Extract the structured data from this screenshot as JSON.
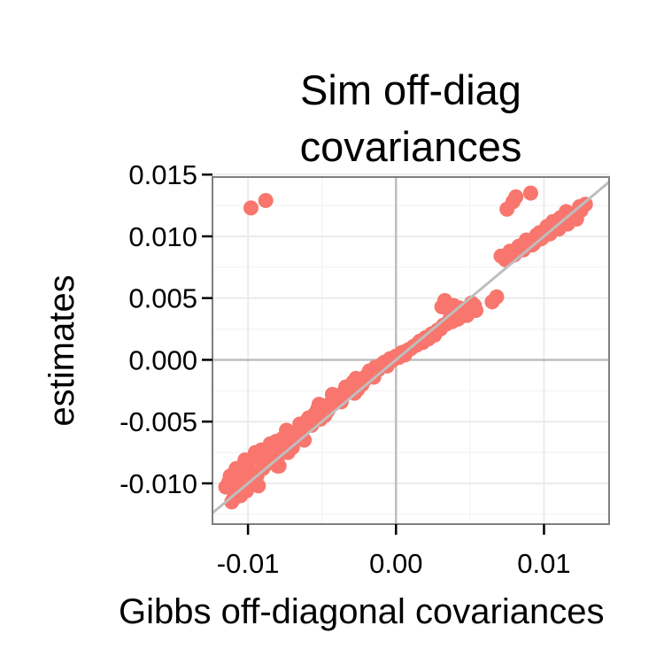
{
  "chart_data": {
    "type": "scatter",
    "title_lines": [
      "Sim off-diag",
      "covariances"
    ],
    "xlabel": "Gibbs off-diagonal covariances",
    "ylabel": "estimates",
    "xlim": [
      -0.0124,
      0.0144
    ],
    "ylim": [
      -0.0133,
      0.0148
    ],
    "x_ticks": [
      -0.01,
      0.0,
      0.01
    ],
    "x_tick_labels": [
      "-0.01",
      "0.00",
      "0.01"
    ],
    "y_ticks": [
      -0.01,
      -0.005,
      0.0,
      0.005,
      0.01,
      0.015
    ],
    "y_tick_labels": [
      "-0.010",
      "-0.005",
      "0.000",
      "0.005",
      "0.010",
      "0.015"
    ],
    "grid": true,
    "reference_lines": {
      "hline_y": 0,
      "vline_x": 0,
      "identity": true
    },
    "colors": {
      "points": "#F8766D",
      "reference": "#BEBEBE",
      "frame": "#7F7F7F",
      "grid_major": "#EBEBEB",
      "grid_minor": "#F5F5F5"
    },
    "points_x": [
      -0.0115,
      -0.0112,
      -0.011,
      -0.0108,
      -0.0113,
      -0.0109,
      -0.0106,
      -0.0104,
      -0.0111,
      -0.0107,
      -0.0103,
      -0.0101,
      -0.0109,
      -0.0105,
      -0.0099,
      -0.0097,
      -0.0108,
      -0.0102,
      -0.0098,
      -0.0095,
      -0.0093,
      -0.01,
      -0.0096,
      -0.0092,
      -0.009,
      -0.0088,
      -0.0094,
      -0.0091,
      -0.0087,
      -0.0085,
      -0.0089,
      -0.0084,
      -0.0082,
      -0.008,
      -0.0086,
      -0.0081,
      -0.0079,
      -0.0077,
      -0.0083,
      -0.0078,
      -0.0075,
      -0.0073,
      -0.0076,
      -0.0072,
      -0.007,
      -0.0068,
      -0.0074,
      -0.0071,
      -0.0066,
      -0.0064,
      -0.0069,
      -0.0065,
      -0.0062,
      -0.006,
      -0.0063,
      -0.0059,
      -0.0057,
      -0.0055,
      -0.0061,
      -0.0056,
      -0.0053,
      -0.0051,
      -0.0054,
      -0.005,
      -0.0048,
      -0.0046,
      -0.0052,
      -0.0047,
      -0.0044,
      -0.0042,
      -0.0045,
      -0.0041,
      -0.0039,
      -0.0037,
      -0.0043,
      -0.0038,
      -0.0035,
      -0.0033,
      -0.0036,
      -0.0032,
      -0.003,
      -0.0028,
      -0.0034,
      -0.0029,
      -0.0026,
      -0.0024,
      -0.0027,
      -0.0023,
      -0.0021,
      -0.0019,
      -0.0025,
      -0.002,
      -0.0017,
      -0.0015,
      -0.0018,
      -0.0014,
      -0.0012,
      -0.001,
      -0.0008,
      -0.0006,
      -0.0004,
      -0.0002,
      0.0,
      0.0002,
      0.0004,
      0.0006,
      0.0008,
      0.001,
      0.0012,
      0.0014,
      0.0016,
      0.0018,
      0.002,
      0.0022,
      0.0024,
      0.0026,
      0.0028,
      0.003,
      0.0032,
      0.0034,
      0.0036,
      0.0038,
      0.004,
      0.0042,
      0.0044,
      0.0046,
      0.0048,
      0.005,
      0.0052,
      0.0054,
      0.0031,
      0.0035,
      0.0039,
      0.0043,
      0.0047,
      0.0051,
      0.0033,
      0.0037,
      0.0041,
      0.0045,
      0.0049,
      0.0053,
      0.0065,
      0.0068,
      0.0071,
      0.0074,
      0.0077,
      0.008,
      0.0083,
      0.0086,
      0.0089,
      0.0092,
      0.0095,
      0.0098,
      0.0101,
      0.0104,
      0.0107,
      0.011,
      0.0113,
      0.0116,
      0.0119,
      0.0122,
      0.0125,
      0.0128,
      0.0075,
      0.0079,
      0.0084,
      0.0088,
      0.0093,
      0.0097,
      0.0102,
      0.0106,
      0.0111,
      0.0115,
      0.012,
      0.0124,
      0.0081,
      0.0091,
      0.0099,
      0.0109,
      0.0118,
      -0.0098,
      -0.0088,
      -0.0079,
      -0.0095,
      -0.0085
    ],
    "points_y": [
      -0.0103,
      -0.0094,
      -0.0113,
      -0.0088,
      -0.0099,
      -0.0108,
      -0.0092,
      -0.0101,
      -0.0115,
      -0.0097,
      -0.0085,
      -0.0106,
      -0.0091,
      -0.011,
      -0.0089,
      -0.0098,
      -0.0104,
      -0.0081,
      -0.0093,
      -0.0079,
      -0.0102,
      -0.0087,
      -0.0096,
      -0.0076,
      -0.0088,
      -0.0082,
      -0.0094,
      -0.0073,
      -0.0084,
      -0.0072,
      -0.0083,
      -0.0078,
      -0.0069,
      -0.0086,
      -0.0074,
      -0.0066,
      -0.0077,
      -0.0064,
      -0.0081,
      -0.007,
      -0.0062,
      -0.0075,
      -0.0068,
      -0.0059,
      -0.0071,
      -0.0063,
      -0.0057,
      -0.0067,
      -0.0058,
      -0.0054,
      -0.0061,
      -0.0052,
      -0.0065,
      -0.0049,
      -0.0056,
      -0.0047,
      -0.0053,
      -0.0044,
      -0.0051,
      -0.0046,
      -0.004,
      -0.0048,
      -0.0043,
      -0.0037,
      -0.0045,
      -0.0041,
      -0.0036,
      -0.0042,
      -0.0035,
      -0.0031,
      -0.0038,
      -0.0033,
      -0.0029,
      -0.0034,
      -0.0028,
      -0.0032,
      -0.0026,
      -0.0023,
      -0.003,
      -0.0025,
      -0.0021,
      -0.0027,
      -0.0022,
      -0.0018,
      -0.0024,
      -0.0019,
      -0.0015,
      -0.002,
      -0.0016,
      -0.0012,
      -0.0017,
      -0.0013,
      -0.001,
      -0.0014,
      -0.0009,
      -0.0006,
      -0.0008,
      -0.0004,
      -0.0002,
      -0.0005,
      0.0001,
      0.0,
      0.0003,
      0.0002,
      0.0006,
      0.0004,
      0.0008,
      0.0009,
      0.0011,
      0.0012,
      0.0015,
      0.0014,
      0.0018,
      0.0017,
      0.0021,
      0.002,
      0.0024,
      0.0025,
      0.0028,
      0.0029,
      0.0032,
      0.0031,
      0.0034,
      0.0033,
      0.0035,
      0.0037,
      0.0036,
      0.0039,
      0.0041,
      0.004,
      0.0043,
      0.0045,
      0.0044,
      0.0042,
      0.0038,
      0.0046,
      0.0048,
      0.0036,
      0.0033,
      0.0039,
      0.0041,
      0.0044,
      0.0047,
      0.0051,
      0.0084,
      0.0081,
      0.0088,
      0.0085,
      0.0092,
      0.0089,
      0.0096,
      0.0093,
      0.0101,
      0.0098,
      0.0105,
      0.0102,
      0.0109,
      0.0106,
      0.0113,
      0.011,
      0.0117,
      0.0114,
      0.0121,
      0.0126,
      0.0122,
      0.0128,
      0.0091,
      0.0097,
      0.0094,
      0.0103,
      0.0108,
      0.0112,
      0.0115,
      0.012,
      0.0118,
      0.0124,
      0.0132,
      0.0135,
      0.0099,
      0.0107,
      0.0116,
      0.0123,
      0.0129,
      -0.0086,
      -0.0075,
      -0.0068,
      -0.0112,
      -0.009
    ]
  }
}
